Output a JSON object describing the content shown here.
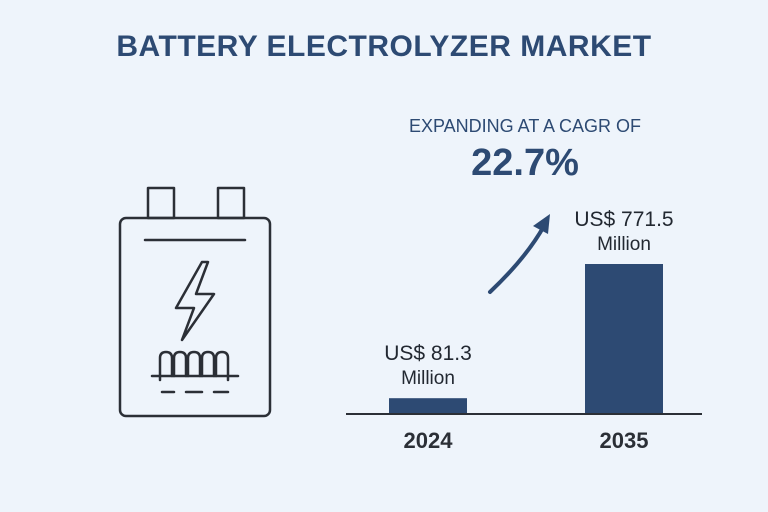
{
  "header": {
    "title": "BATTERY ELECTROLYZER MARKET"
  },
  "growth": {
    "label": "EXPANDING AT A CAGR OF",
    "value": "22.7%"
  },
  "icons": {
    "battery": "battery-icon",
    "lightning": "lightning-bolt-icon",
    "arrow": "trend-arrow-up-icon"
  },
  "colors": {
    "background": "#eef4fb",
    "bar": "#2d4a73",
    "text": "#2d4a73"
  },
  "chart_data": {
    "type": "bar",
    "categories": [
      "2024",
      "2035"
    ],
    "values": [
      81.3,
      771.5
    ],
    "value_labels": [
      [
        "US$ 81.3",
        "Million"
      ],
      [
        "US$ 771.5",
        "Million"
      ]
    ],
    "unit": "US$ Million",
    "title": "",
    "xlabel": "",
    "ylabel": "",
    "ylim": [
      0,
      771.5
    ],
    "grid": false
  }
}
